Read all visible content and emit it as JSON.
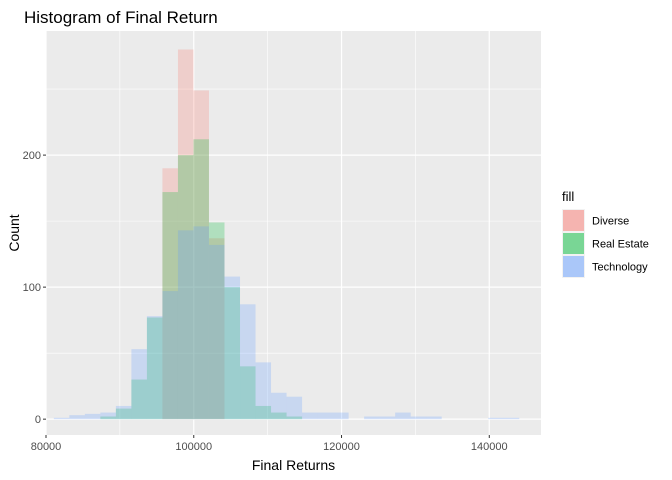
{
  "chart_data": {
    "type": "bar",
    "subtype": "histogram",
    "title": "Histogram of Final Return",
    "xlabel": "Final Returns",
    "ylabel": "Count",
    "xlim": [
      80000,
      147000
    ],
    "ylim": [
      -12,
      294
    ],
    "x_ticks": [
      80000,
      100000,
      120000,
      140000
    ],
    "x_tick_labels": [
      "80000",
      "100000",
      "120000",
      "140000"
    ],
    "y_ticks": [
      0,
      100,
      200
    ],
    "y_tick_labels": [
      "0",
      "100",
      "200"
    ],
    "grid": true,
    "bin_width": 2100,
    "bar_opacity": 0.25,
    "legend": {
      "title": "fill",
      "position": "right",
      "entries": [
        "Diverse",
        "Real Estate",
        "Technology"
      ]
    },
    "series": [
      {
        "name": "Diverse",
        "color": "#F8766D",
        "bins": [
          {
            "x0": 95760,
            "x1": 97860,
            "count": 190
          },
          {
            "x0": 97860,
            "x1": 99960,
            "count": 280
          },
          {
            "x0": 99960,
            "x1": 102060,
            "count": 249
          },
          {
            "x0": 102060,
            "x1": 104160,
            "count": 137
          }
        ]
      },
      {
        "name": "Real Estate",
        "color": "#00BA38",
        "bins": [
          {
            "x0": 87360,
            "x1": 89460,
            "count": 2
          },
          {
            "x0": 89460,
            "x1": 91560,
            "count": 8
          },
          {
            "x0": 91560,
            "x1": 93660,
            "count": 30
          },
          {
            "x0": 93660,
            "x1": 95760,
            "count": 77
          },
          {
            "x0": 95760,
            "x1": 97860,
            "count": 172
          },
          {
            "x0": 97860,
            "x1": 99960,
            "count": 200
          },
          {
            "x0": 99960,
            "x1": 102060,
            "count": 212
          },
          {
            "x0": 102060,
            "x1": 104160,
            "count": 149
          },
          {
            "x0": 104160,
            "x1": 106260,
            "count": 100
          },
          {
            "x0": 106260,
            "x1": 108360,
            "count": 40
          },
          {
            "x0": 108360,
            "x1": 110460,
            "count": 10
          },
          {
            "x0": 110460,
            "x1": 112560,
            "count": 5
          },
          {
            "x0": 112560,
            "x1": 114660,
            "count": 2
          }
        ]
      },
      {
        "name": "Technology",
        "color": "#619CFF",
        "bins": [
          {
            "x0": 81060,
            "x1": 83160,
            "count": 1
          },
          {
            "x0": 83160,
            "x1": 85260,
            "count": 3
          },
          {
            "x0": 85260,
            "x1": 87360,
            "count": 4
          },
          {
            "x0": 87360,
            "x1": 89460,
            "count": 5
          },
          {
            "x0": 89460,
            "x1": 91560,
            "count": 10
          },
          {
            "x0": 91560,
            "x1": 93660,
            "count": 53
          },
          {
            "x0": 93660,
            "x1": 95760,
            "count": 78
          },
          {
            "x0": 95760,
            "x1": 97860,
            "count": 97
          },
          {
            "x0": 97860,
            "x1": 99960,
            "count": 143
          },
          {
            "x0": 99960,
            "x1": 102060,
            "count": 146
          },
          {
            "x0": 102060,
            "x1": 104160,
            "count": 132
          },
          {
            "x0": 104160,
            "x1": 106260,
            "count": 108
          },
          {
            "x0": 106260,
            "x1": 108360,
            "count": 87
          },
          {
            "x0": 108360,
            "x1": 110460,
            "count": 43
          },
          {
            "x0": 110460,
            "x1": 112560,
            "count": 20
          },
          {
            "x0": 112560,
            "x1": 114660,
            "count": 17
          },
          {
            "x0": 114660,
            "x1": 116760,
            "count": 5
          },
          {
            "x0": 116760,
            "x1": 118860,
            "count": 5
          },
          {
            "x0": 118860,
            "x1": 120960,
            "count": 5
          },
          {
            "x0": 123060,
            "x1": 125160,
            "count": 2
          },
          {
            "x0": 125160,
            "x1": 127260,
            "count": 2
          },
          {
            "x0": 127260,
            "x1": 129360,
            "count": 5
          },
          {
            "x0": 129360,
            "x1": 131460,
            "count": 2
          },
          {
            "x0": 131460,
            "x1": 133560,
            "count": 2
          },
          {
            "x0": 139860,
            "x1": 141960,
            "count": 1
          },
          {
            "x0": 141960,
            "x1": 144060,
            "count": 1
          }
        ]
      }
    ]
  }
}
